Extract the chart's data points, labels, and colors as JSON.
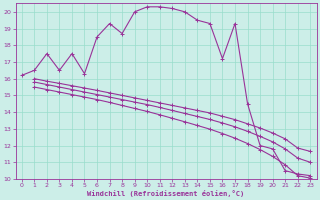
{
  "xlabel": "Windchill (Refroidissement éolien,°C)",
  "bg_color": "#cceee8",
  "grid_color": "#99ddcc",
  "line_color": "#993399",
  "xlim": [
    -0.5,
    23.5
  ],
  "ylim": [
    10,
    20.5
  ],
  "yticks": [
    10,
    11,
    12,
    13,
    14,
    15,
    16,
    17,
    18,
    19,
    20
  ],
  "xticks": [
    0,
    1,
    2,
    3,
    4,
    5,
    6,
    7,
    8,
    9,
    10,
    11,
    12,
    13,
    14,
    15,
    16,
    17,
    18,
    19,
    20,
    21,
    22,
    23
  ],
  "series1_x": [
    0,
    1,
    2,
    3,
    4,
    5,
    6,
    7,
    8,
    9,
    10,
    11,
    12,
    13,
    14,
    15,
    16,
    17,
    18,
    19,
    20,
    21,
    22,
    23
  ],
  "series1_y": [
    16.2,
    16.5,
    17.5,
    16.5,
    17.5,
    16.3,
    18.5,
    19.3,
    18.7,
    20.0,
    20.3,
    20.3,
    20.2,
    20.0,
    19.5,
    19.3,
    17.2,
    19.3,
    14.5,
    12.0,
    11.8,
    10.5,
    10.3,
    10.2
  ],
  "series2_x": [
    1,
    2,
    3,
    4,
    5,
    6,
    7,
    8,
    9,
    10,
    11,
    12,
    13,
    14,
    15,
    16,
    17,
    18,
    19,
    20,
    21,
    22,
    23
  ],
  "series2_y": [
    16.0,
    15.85,
    15.72,
    15.58,
    15.44,
    15.3,
    15.15,
    15.0,
    14.85,
    14.7,
    14.55,
    14.4,
    14.25,
    14.1,
    13.95,
    13.75,
    13.55,
    13.3,
    13.05,
    12.75,
    12.4,
    11.85,
    11.65
  ],
  "series3_x": [
    1,
    2,
    3,
    4,
    5,
    6,
    7,
    8,
    9,
    10,
    11,
    12,
    13,
    14,
    15,
    16,
    17,
    18,
    19,
    20,
    21,
    22,
    23
  ],
  "series3_y": [
    15.8,
    15.65,
    15.5,
    15.35,
    15.2,
    15.05,
    14.9,
    14.75,
    14.6,
    14.45,
    14.28,
    14.1,
    13.92,
    13.74,
    13.56,
    13.35,
    13.12,
    12.85,
    12.55,
    12.22,
    11.8,
    11.25,
    11.0
  ],
  "series4_x": [
    1,
    2,
    3,
    4,
    5,
    6,
    7,
    8,
    9,
    10,
    11,
    12,
    13,
    14,
    15,
    16,
    17,
    18,
    19,
    20,
    21,
    22,
    23
  ],
  "series4_y": [
    15.5,
    15.35,
    15.2,
    15.05,
    14.9,
    14.75,
    14.58,
    14.4,
    14.22,
    14.04,
    13.84,
    13.63,
    13.42,
    13.2,
    12.98,
    12.72,
    12.44,
    12.12,
    11.76,
    11.35,
    10.85,
    10.2,
    10.05
  ]
}
